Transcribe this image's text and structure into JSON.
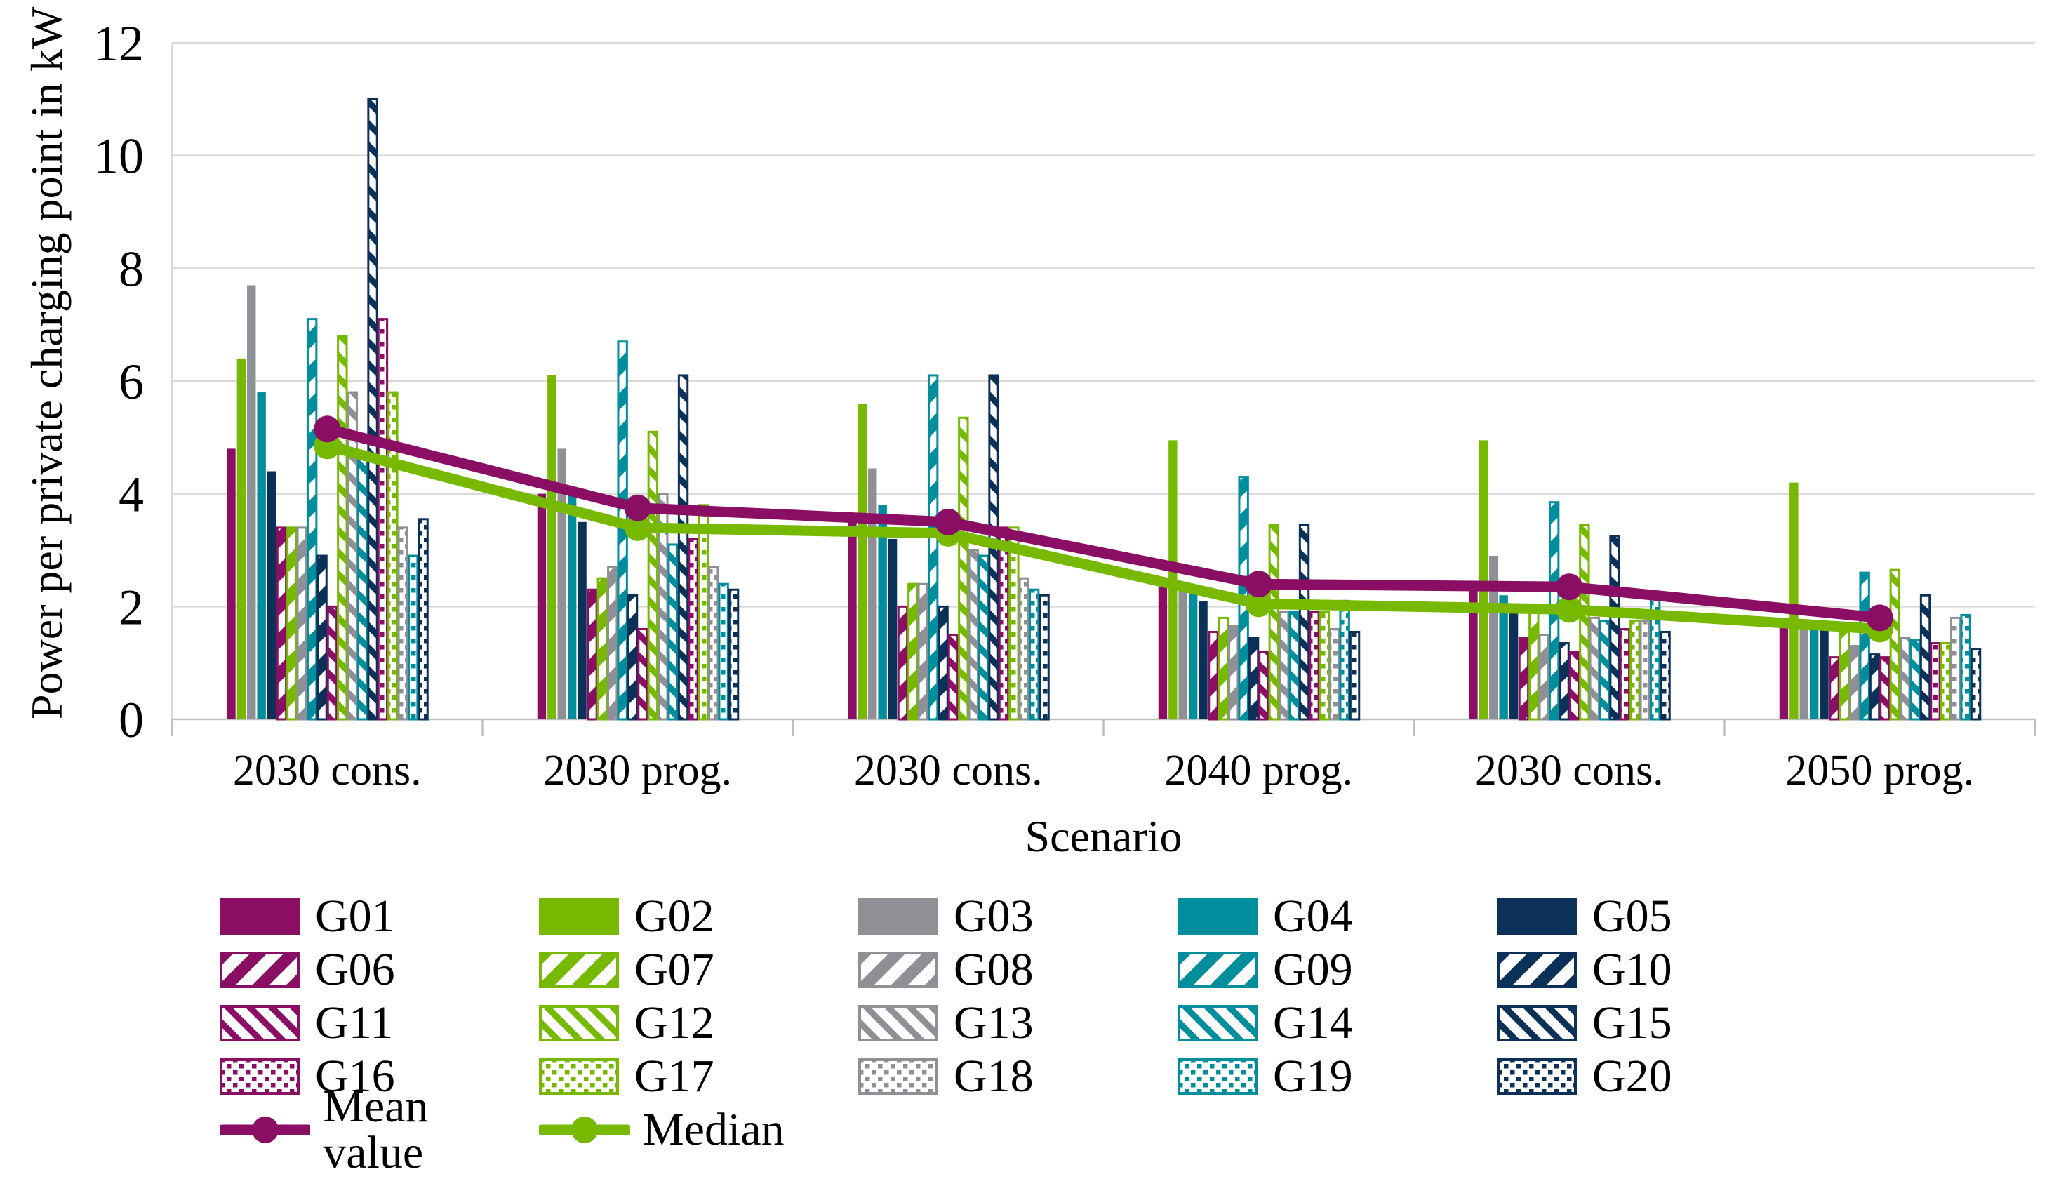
{
  "figure": {
    "background": "#FFFFFF"
  },
  "y_axis": {
    "title": "Power per private charging point in kW",
    "tick_values": [
      0,
      2,
      4,
      6,
      8,
      10,
      12
    ],
    "min": 0,
    "max": 12
  },
  "x_axis": {
    "title": "Scenario"
  },
  "colors": {
    "purple": "#8A0E63",
    "green": "#76B900",
    "gray": "#8E9095",
    "teal": "#008E9C",
    "navy": "#0B3158",
    "mean_line": "#8A0E63",
    "median_line": "#76B900",
    "gridline": "#D9D9D9",
    "axis_line": "#BFBFBF",
    "text": "#000000"
  },
  "legend": {
    "mean_label": "Mean value",
    "median_label": "Median"
  },
  "chart_data": {
    "type": "bar",
    "title": "",
    "xlabel": "Scenario",
    "ylabel": "Power per private charging point in kW",
    "ylim": [
      0,
      12
    ],
    "grid": true,
    "legend_position": "bottom",
    "categories": [
      "2030 cons.",
      "2030 prog.",
      "2030 cons.",
      "2040 prog.",
      "2030 cons.",
      "2050 prog."
    ],
    "series": [
      {
        "name": "G01",
        "color_key": "purple",
        "pattern": "solid",
        "values": [
          4.8,
          4.0,
          3.65,
          2.5,
          2.35,
          1.7
        ]
      },
      {
        "name": "G02",
        "color_key": "green",
        "pattern": "solid",
        "values": [
          6.4,
          6.1,
          5.6,
          4.95,
          4.95,
          4.2
        ]
      },
      {
        "name": "G03",
        "color_key": "gray",
        "pattern": "solid",
        "values": [
          7.7,
          4.8,
          4.45,
          2.4,
          2.9,
          1.65
        ]
      },
      {
        "name": "G04",
        "color_key": "teal",
        "pattern": "solid",
        "values": [
          5.8,
          4.0,
          3.8,
          2.3,
          2.2,
          1.7
        ]
      },
      {
        "name": "G05",
        "color_key": "navy",
        "pattern": "solid",
        "values": [
          4.4,
          3.5,
          3.2,
          2.1,
          2.0,
          1.6
        ]
      },
      {
        "name": "G06",
        "color_key": "purple",
        "pattern": "diag-bold",
        "values": [
          3.4,
          2.3,
          2.0,
          1.55,
          1.45,
          1.1
        ]
      },
      {
        "name": "G07",
        "color_key": "green",
        "pattern": "diag-bold",
        "values": [
          3.4,
          2.5,
          2.4,
          1.8,
          1.9,
          1.55
        ]
      },
      {
        "name": "G08",
        "color_key": "gray",
        "pattern": "diag-bold",
        "values": [
          3.4,
          2.7,
          2.4,
          1.65,
          1.5,
          1.3
        ]
      },
      {
        "name": "G09",
        "color_key": "teal",
        "pattern": "diag-bold",
        "values": [
          7.1,
          6.7,
          6.1,
          4.3,
          3.85,
          2.6
        ]
      },
      {
        "name": "G10",
        "color_key": "navy",
        "pattern": "diag-bold",
        "values": [
          2.9,
          2.2,
          2.0,
          1.45,
          1.35,
          1.15
        ]
      },
      {
        "name": "G11",
        "color_key": "purple",
        "pattern": "diag-thin",
        "values": [
          2.0,
          1.6,
          1.5,
          1.2,
          1.2,
          1.1
        ]
      },
      {
        "name": "G12",
        "color_key": "green",
        "pattern": "diag-thin",
        "values": [
          6.8,
          5.1,
          5.35,
          3.45,
          3.45,
          2.65
        ]
      },
      {
        "name": "G13",
        "color_key": "gray",
        "pattern": "diag-thin",
        "values": [
          5.8,
          4.0,
          3.0,
          1.9,
          1.8,
          1.45
        ]
      },
      {
        "name": "G14",
        "color_key": "teal",
        "pattern": "diag-thin",
        "values": [
          4.75,
          3.1,
          2.9,
          1.9,
          1.75,
          1.4
        ]
      },
      {
        "name": "G15",
        "color_key": "navy",
        "pattern": "diag-thin",
        "values": [
          11.0,
          6.1,
          6.1,
          3.45,
          3.25,
          2.2
        ]
      },
      {
        "name": "G16",
        "color_key": "purple",
        "pattern": "dots",
        "values": [
          7.1,
          3.2,
          3.4,
          1.9,
          1.6,
          1.35
        ]
      },
      {
        "name": "G17",
        "color_key": "green",
        "pattern": "dots",
        "values": [
          5.8,
          3.8,
          3.4,
          1.9,
          1.75,
          1.35
        ]
      },
      {
        "name": "G18",
        "color_key": "gray",
        "pattern": "dots",
        "values": [
          3.4,
          2.7,
          2.5,
          1.6,
          1.75,
          1.8
        ]
      },
      {
        "name": "G19",
        "color_key": "teal",
        "pattern": "dots",
        "values": [
          2.9,
          2.4,
          2.3,
          2.1,
          2.25,
          1.85
        ]
      },
      {
        "name": "G20",
        "color_key": "navy",
        "pattern": "dots",
        "values": [
          3.55,
          2.3,
          2.2,
          1.55,
          1.55,
          1.25
        ]
      }
    ],
    "lines": [
      {
        "name": "Mean value",
        "color_key": "mean_line",
        "values": [
          5.15,
          3.75,
          3.5,
          2.4,
          2.35,
          1.8
        ]
      },
      {
        "name": "Median",
        "color_key": "median_line",
        "values": [
          4.85,
          3.4,
          3.3,
          2.05,
          1.95,
          1.6
        ]
      }
    ]
  }
}
